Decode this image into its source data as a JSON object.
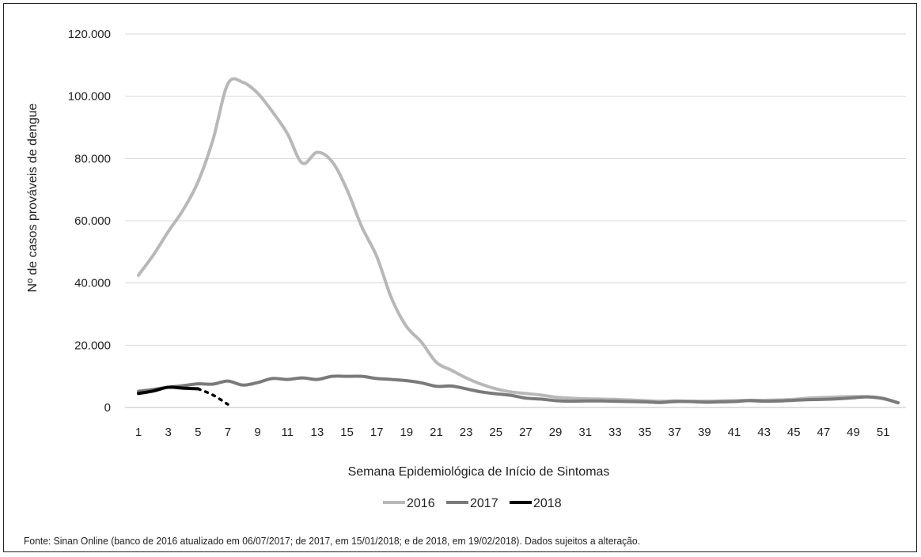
{
  "chart_data": {
    "type": "line",
    "ylabel": "Nº de casos prováveis de dengue",
    "xlabel": "Semana Epidemiológica de Início de Sintomas",
    "ylim": [
      0,
      120000
    ],
    "yticks": [
      0,
      20000,
      40000,
      60000,
      80000,
      100000,
      120000
    ],
    "ytick_labels": [
      "0",
      "20.000",
      "40.000",
      "60.000",
      "80.000",
      "100.000",
      "120.000"
    ],
    "xticks": [
      1,
      3,
      5,
      7,
      9,
      11,
      13,
      15,
      17,
      19,
      21,
      23,
      25,
      27,
      29,
      31,
      33,
      35,
      37,
      39,
      41,
      43,
      45,
      47,
      49,
      51
    ],
    "xlim": [
      1,
      52
    ],
    "grid": "horizontal",
    "legend_position": "bottom",
    "series": [
      {
        "name": "2016",
        "color": "#b8b8b8",
        "x": [
          1,
          2,
          3,
          4,
          5,
          6,
          7,
          8,
          9,
          10,
          11,
          12,
          13,
          14,
          15,
          16,
          17,
          18,
          19,
          20,
          21,
          22,
          23,
          24,
          25,
          26,
          27,
          28,
          29,
          30,
          31,
          32,
          33,
          34,
          35,
          36,
          37,
          38,
          39,
          40,
          41,
          42,
          43,
          44,
          45,
          46,
          47,
          48,
          49,
          50,
          51,
          52
        ],
        "values": [
          42500,
          49000,
          56500,
          63500,
          72500,
          86000,
          104000,
          104500,
          101000,
          95000,
          88000,
          78500,
          82000,
          79000,
          70000,
          58000,
          48500,
          35000,
          26000,
          21000,
          14500,
          12000,
          9500,
          7500,
          6000,
          5000,
          4500,
          4000,
          3300,
          3000,
          2800,
          2700,
          2600,
          2400,
          2200,
          2000,
          2100,
          2000,
          2000,
          2100,
          2200,
          2300,
          2300,
          2400,
          2600,
          3000,
          3200,
          3400,
          3500,
          3400,
          2800,
          1500
        ]
      },
      {
        "name": "2017",
        "color": "#7a7a7a",
        "x": [
          1,
          2,
          3,
          4,
          5,
          6,
          7,
          8,
          9,
          10,
          11,
          12,
          13,
          14,
          15,
          16,
          17,
          18,
          19,
          20,
          21,
          22,
          23,
          24,
          25,
          26,
          27,
          28,
          29,
          30,
          31,
          32,
          33,
          34,
          35,
          36,
          37,
          38,
          39,
          40,
          41,
          42,
          43,
          44,
          45,
          46,
          47,
          48,
          49,
          50,
          51,
          52
        ],
        "values": [
          5200,
          5800,
          6500,
          7000,
          7600,
          7500,
          8500,
          7200,
          8000,
          9300,
          9000,
          9500,
          9000,
          10000,
          10000,
          10000,
          9300,
          9000,
          8600,
          7900,
          6800,
          6900,
          6000,
          5000,
          4400,
          3900,
          3000,
          2700,
          2200,
          2000,
          2100,
          2100,
          2000,
          1900,
          1800,
          1600,
          1900,
          1900,
          1700,
          1800,
          1900,
          2200,
          2000,
          2100,
          2300,
          2500,
          2600,
          2800,
          3100,
          3400,
          2900,
          1500
        ]
      },
      {
        "name": "2018",
        "color": "#000000",
        "x": [
          1,
          2,
          3,
          4,
          5
        ],
        "values": [
          4500,
          5300,
          6500,
          6200,
          6000
        ],
        "dotted_x": [
          5,
          6,
          7
        ],
        "dotted_values": [
          6000,
          4000,
          1000
        ]
      }
    ]
  },
  "footer": {
    "source": "Fonte: Sinan Online (banco de 2016 atualizado em 06/07/2017; de 2017, em 15/01/2018; e de 2018, em 19/02/2018). Dados sujeitos a alteração."
  }
}
